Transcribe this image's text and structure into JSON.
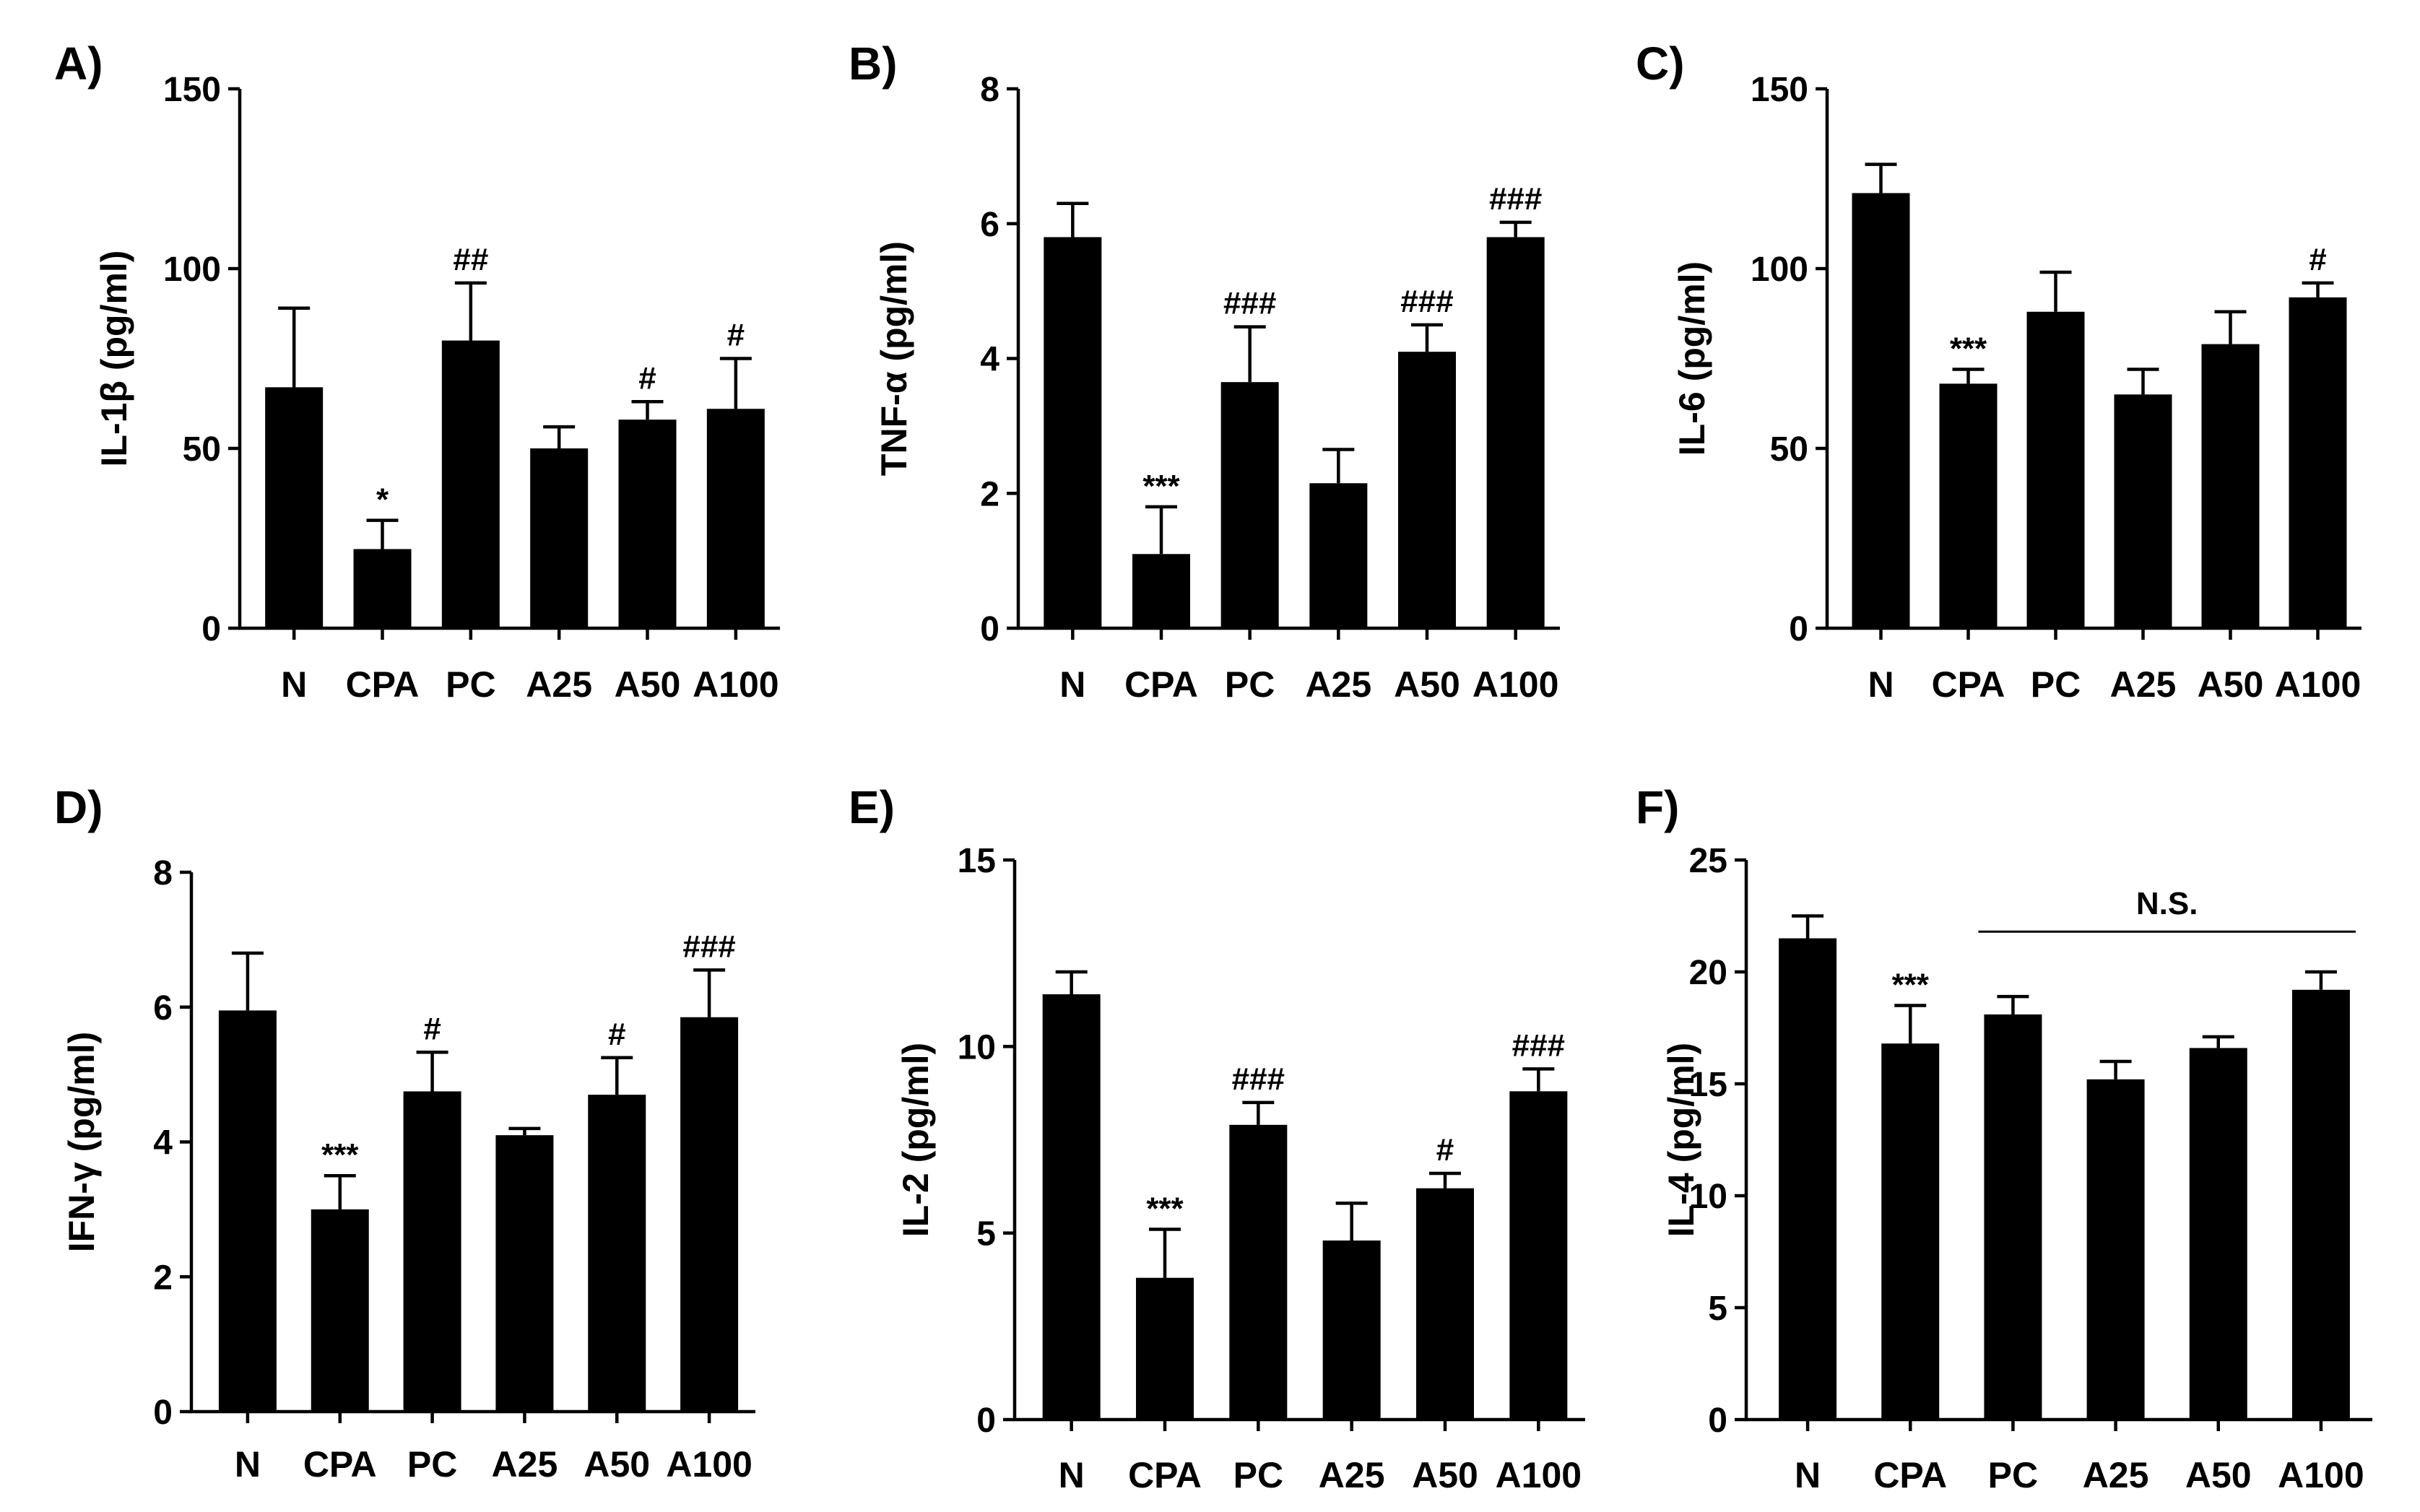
{
  "figure_title": "",
  "chart_data": [
    {
      "panel": "A)",
      "type": "bar",
      "ylabel": "IL-1β (pg/ml)",
      "categories": [
        "N",
        "CPA",
        "PC",
        "A25",
        "A50",
        "A100"
      ],
      "values": [
        67,
        22,
        80,
        50,
        58,
        61
      ],
      "errors": [
        22,
        8,
        16,
        6,
        5,
        14
      ],
      "annotations": [
        "",
        "*",
        "##",
        "",
        "#",
        "#"
      ],
      "ylim": [
        0,
        150
      ],
      "yticks": [
        0,
        50,
        100,
        150
      ],
      "ytick_labels": [
        "0",
        "50",
        "100",
        "150"
      ],
      "bracket": null
    },
    {
      "panel": "B)",
      "type": "bar",
      "ylabel": "TNF-α (pg/ml)",
      "categories": [
        "N",
        "CPA",
        "PC",
        "A25",
        "A50",
        "A100"
      ],
      "values": [
        5.8,
        1.1,
        3.65,
        2.15,
        4.1,
        5.8
      ],
      "errors": [
        0.5,
        0.7,
        0.82,
        0.5,
        0.4,
        0.22
      ],
      "annotations": [
        "",
        "***",
        "###",
        "",
        "###",
        "###"
      ],
      "ylim": [
        0,
        8
      ],
      "yticks": [
        0,
        2,
        4,
        6,
        8
      ],
      "ytick_labels": [
        "0",
        "2",
        "4",
        "6",
        "8"
      ],
      "bracket": null
    },
    {
      "panel": "C)",
      "type": "bar",
      "ylabel": "IL-6 (pg/ml)",
      "categories": [
        "N",
        "CPA",
        "PC",
        "A25",
        "A50",
        "A100"
      ],
      "values": [
        121,
        68,
        88,
        65,
        79,
        92
      ],
      "errors": [
        8,
        4,
        11,
        7,
        9,
        4
      ],
      "annotations": [
        "",
        "***",
        "",
        "",
        "",
        "#"
      ],
      "ylim": [
        0,
        150
      ],
      "yticks": [
        0,
        50,
        100,
        150
      ],
      "ytick_labels": [
        "0",
        "50",
        "100",
        "150"
      ],
      "bracket": null
    },
    {
      "panel": "D)",
      "type": "bar",
      "ylabel": "IFN-γ (pg/ml)",
      "categories": [
        "N",
        "CPA",
        "PC",
        "A25",
        "A50",
        "A100"
      ],
      "values": [
        5.95,
        3.0,
        4.75,
        4.1,
        4.7,
        5.85
      ],
      "errors": [
        0.85,
        0.5,
        0.58,
        0.1,
        0.55,
        0.7
      ],
      "annotations": [
        "",
        "***",
        "#",
        "",
        "#",
        "###"
      ],
      "ylim": [
        0,
        8
      ],
      "yticks": [
        0,
        2,
        4,
        6,
        8
      ],
      "ytick_labels": [
        "0",
        "2",
        "4",
        "6",
        "8"
      ],
      "bracket": null
    },
    {
      "panel": "E)",
      "type": "bar",
      "ylabel": "IL-2 (pg/ml)",
      "categories": [
        "N",
        "CPA",
        "PC",
        "A25",
        "A50",
        "A100"
      ],
      "values": [
        11.4,
        3.8,
        7.9,
        4.8,
        6.2,
        8.8
      ],
      "errors": [
        0.6,
        1.3,
        0.6,
        1.0,
        0.4,
        0.6
      ],
      "annotations": [
        "",
        "***",
        "###",
        "",
        "#",
        "###"
      ],
      "ylim": [
        0,
        15
      ],
      "yticks": [
        0,
        5,
        10,
        15
      ],
      "ytick_labels": [
        "0",
        "5",
        "10",
        "15"
      ],
      "bracket": null
    },
    {
      "panel": "F)",
      "type": "bar",
      "ylabel": "IL-4 (pg/ml)",
      "categories": [
        "N",
        "CPA",
        "PC",
        "A25",
        "A50",
        "A100"
      ],
      "values": [
        21.5,
        16.8,
        18.1,
        15.2,
        16.6,
        19.2
      ],
      "errors": [
        1.0,
        1.7,
        0.8,
        0.8,
        0.5,
        0.8
      ],
      "annotations": [
        "",
        "***",
        "",
        "",
        "",
        ""
      ],
      "ylim": [
        0,
        25
      ],
      "yticks": [
        0,
        5,
        10,
        15,
        20,
        25
      ],
      "ytick_labels": [
        "0",
        "5",
        "10",
        "15",
        "20",
        "25"
      ],
      "bracket": {
        "label": "N.S.",
        "from_category": 2,
        "to_category": 5,
        "level": 21.8
      }
    }
  ]
}
